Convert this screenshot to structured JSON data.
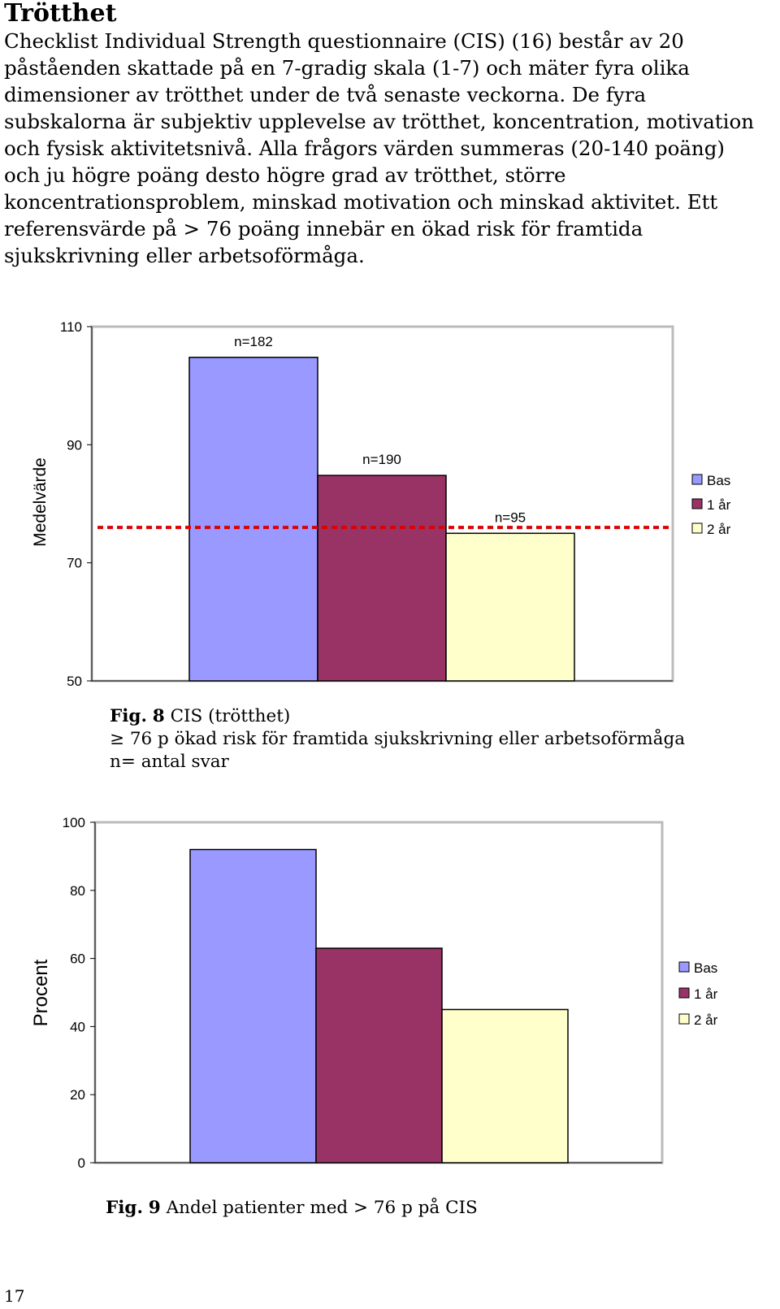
{
  "heading": "Trötthet",
  "paragraph_lines": [
    "Checklist Individual Strength questionnaire (CIS) (16) består av 20",
    "påståenden skattade på en 7-gradig skala (1-7) och mäter fyra olika",
    "dimensioner av trötthet under de två senaste veckorna. De fyra",
    "subskalorna är subjektiv upplevelse av trötthet, koncentration, motivation",
    "och fysisk aktivitetsnivå. Alla frågors värden summeras (20-140 poäng)",
    "och ju högre poäng desto högre grad av trötthet, större",
    "koncentrationsproblem, minskad motivation och minskad aktivitet. Ett",
    "referensvärde på > 76 poäng innebär en ökad risk för framtida",
    "sjukskrivning eller arbetsoförmåga."
  ],
  "colors": {
    "bas": "#9999ff",
    "ar1": "#993366",
    "ar2": "#ffffcc",
    "ref_line": "#dd0000",
    "frame": "#bbbbbb"
  },
  "chart_data": [
    {
      "type": "bar",
      "ylabel": "Medelvärde",
      "ylim": [
        50,
        110
      ],
      "yticks": [
        "50",
        "70",
        "90",
        "110"
      ],
      "grid": false,
      "legend": "right",
      "reference_line": 76,
      "series": [
        {
          "name": "Bas",
          "value": 104.8,
          "label": "n=182"
        },
        {
          "name": "1 år",
          "value": 84.8,
          "label": "n=190"
        },
        {
          "name": "2 år",
          "value": 75.0,
          "label": "n=95"
        }
      ]
    },
    {
      "type": "bar",
      "ylabel": "Procent",
      "ylim": [
        0,
        100
      ],
      "yticks": [
        "0",
        "20",
        "40",
        "60",
        "80",
        "100"
      ],
      "grid": false,
      "legend": "right",
      "series": [
        {
          "name": "Bas",
          "value": 92
        },
        {
          "name": "1 år",
          "value": 63
        },
        {
          "name": "2 år",
          "value": 45
        }
      ]
    }
  ],
  "fig8": {
    "label": "Fig.",
    "number": "8",
    "title": "CIS (trötthet)",
    "line2": "≥ 76 p ökad risk för framtida sjukskrivning eller arbetsoförmåga",
    "line3": "n= antal svar"
  },
  "fig9": {
    "label": "Fig.",
    "number": "9",
    "title": "Andel patienter med > 76 p på CIS"
  },
  "page_number": "17"
}
